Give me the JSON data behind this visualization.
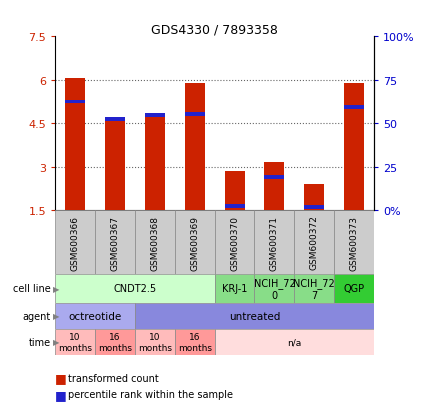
{
  "title": "GDS4330 / 7893358",
  "samples": [
    "GSM600366",
    "GSM600367",
    "GSM600368",
    "GSM600369",
    "GSM600370",
    "GSM600371",
    "GSM600372",
    "GSM600373"
  ],
  "red_values": [
    6.05,
    4.65,
    4.75,
    5.9,
    2.85,
    3.15,
    2.4,
    5.9
  ],
  "blue_values": [
    5.25,
    4.65,
    4.78,
    4.82,
    1.63,
    2.65,
    1.62,
    5.05
  ],
  "ylim": [
    1.5,
    7.5
  ],
  "yticks": [
    1.5,
    3.0,
    4.5,
    6.0,
    7.5
  ],
  "ytick_labels": [
    "1.5",
    "3",
    "4.5",
    "6",
    "7.5"
  ],
  "y2ticks_data": [
    1.5,
    3.0,
    4.5,
    6.0,
    7.5
  ],
  "y2tick_labels": [
    "0%",
    "25",
    "50",
    "75",
    "100%"
  ],
  "cell_line_groups": [
    {
      "label": "CNDT2.5",
      "start": 0,
      "end": 4,
      "color": "#ccffcc"
    },
    {
      "label": "KRJ-1",
      "start": 4,
      "end": 5,
      "color": "#88dd88"
    },
    {
      "label": "NCIH_72\n0",
      "start": 5,
      "end": 6,
      "color": "#88dd88"
    },
    {
      "label": "NCIH_72\n7",
      "start": 6,
      "end": 7,
      "color": "#88dd88"
    },
    {
      "label": "QGP",
      "start": 7,
      "end": 8,
      "color": "#33cc33"
    }
  ],
  "agent_groups": [
    {
      "label": "octreotide",
      "start": 0,
      "end": 2,
      "color": "#aaaaee"
    },
    {
      "label": "untreated",
      "start": 2,
      "end": 8,
      "color": "#8888dd"
    }
  ],
  "time_groups": [
    {
      "label": "10\nmonths",
      "start": 0,
      "end": 1,
      "color": "#ffbbbb"
    },
    {
      "label": "16\nmonths",
      "start": 1,
      "end": 2,
      "color": "#ff9999"
    },
    {
      "label": "10\nmonths",
      "start": 2,
      "end": 3,
      "color": "#ffbbbb"
    },
    {
      "label": "16\nmonths",
      "start": 3,
      "end": 4,
      "color": "#ff9999"
    },
    {
      "label": "n/a",
      "start": 4,
      "end": 8,
      "color": "#ffdddd"
    }
  ],
  "legend_red": "transformed count",
  "legend_blue": "percentile rank within the sample",
  "bar_color_red": "#cc2200",
  "bar_color_blue": "#2222cc",
  "bar_width": 0.5,
  "dot_grid_color": "#666666",
  "sample_box_color": "#cccccc"
}
